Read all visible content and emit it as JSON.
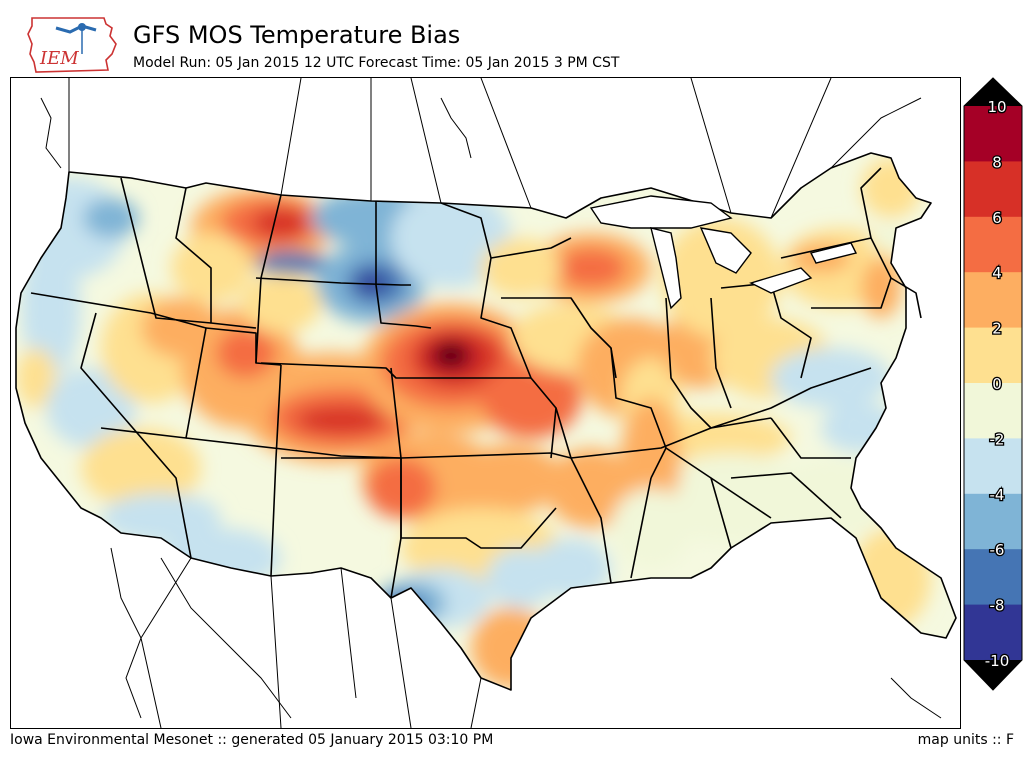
{
  "header": {
    "title": "GFS MOS Temperature Bias",
    "subtitle": "Model Run: 05 Jan 2015 12 UTC Forecast Time: 05 Jan 2015 3 PM CST",
    "logo_text": "IEM"
  },
  "footer": {
    "left": "Iowa Environmental Mesonet :: generated 05 January 2015 03:10 PM",
    "right": "map units :: F"
  },
  "colorbar": {
    "ticks": [
      "10",
      "8",
      "6",
      "4",
      "2",
      "0",
      "-2",
      "-4",
      "-6",
      "-8",
      "-10"
    ],
    "colors": [
      "#a50026",
      "#d73027",
      "#f46d43",
      "#fdae61",
      "#fee090",
      "#f1f7d9",
      "#c6e2ef",
      "#7fb4d6",
      "#4575b4",
      "#313695"
    ],
    "over_color": "#000000",
    "under_color": "#000000"
  },
  "colors": {
    "land_default": "#f5f9e0",
    "ocean": "#ffffff",
    "borders": "#000000"
  }
}
